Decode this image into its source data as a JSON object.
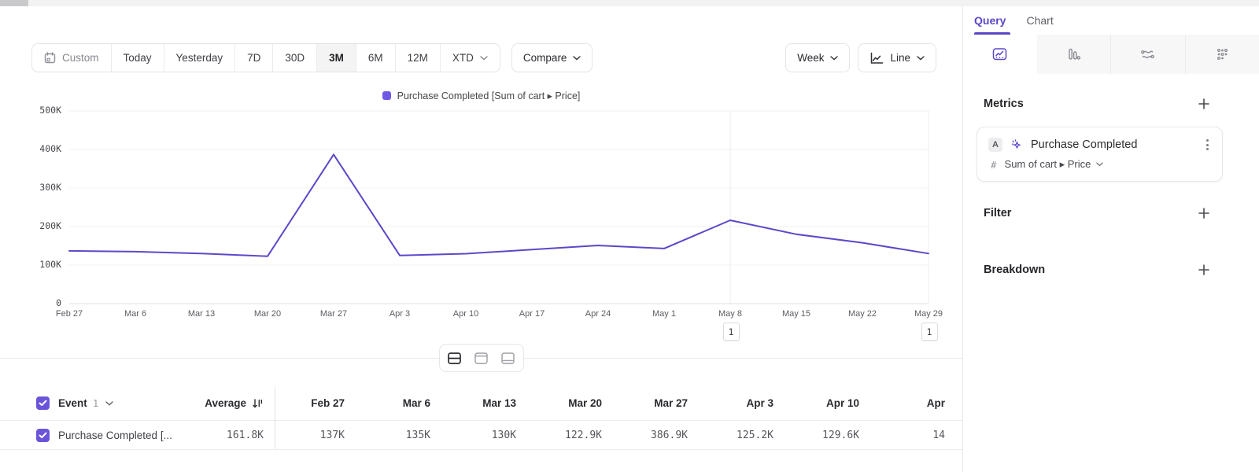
{
  "colors": {
    "accent": "#5a48c8",
    "line": "#5a49c8",
    "swatch": "#6f58e3",
    "checkbox": "#6b54d9",
    "annotation_line": "#ececef",
    "grid": "#f1f1f3",
    "axis": "#e2e2e5"
  },
  "toolbar": {
    "date_ranges": [
      "Custom",
      "Today",
      "Yesterday",
      "7D",
      "30D",
      "3M",
      "6M",
      "12M",
      "XTD"
    ],
    "active_range": "3M",
    "compare_label": "Compare",
    "granularity_label": "Week",
    "chart_type_label": "Line"
  },
  "legend": {
    "label": "Purchase Completed [Sum of cart ▸ Price]"
  },
  "chart_data": {
    "type": "line",
    "title": "",
    "xlabel": "",
    "ylabel": "",
    "x": [
      "Feb 27",
      "Mar 6",
      "Mar 13",
      "Mar 20",
      "Mar 27",
      "Apr 3",
      "Apr 10",
      "Apr 17",
      "Apr 24",
      "May 1",
      "May 8",
      "May 15",
      "May 22",
      "May 29"
    ],
    "series": [
      {
        "name": "Purchase Completed [Sum of cart ▸ Price]",
        "values": [
          137000,
          135000,
          130000,
          122900,
          386900,
          125200,
          129600,
          140300,
          151000,
          143000,
          216400,
          180000,
          158000,
          129900
        ]
      }
    ],
    "ylim": [
      0,
      500000
    ],
    "yticks": [
      "500K",
      "400K",
      "300K",
      "200K",
      "100K",
      "0"
    ],
    "grid": true,
    "legend_position": "top",
    "annotations": [
      {
        "x": "May 8",
        "label": "1"
      },
      {
        "x": "May 29",
        "label": "1"
      }
    ]
  },
  "layout_toggle": {
    "icons": [
      "split-view",
      "chart-focus",
      "table-focus"
    ],
    "active": "split-view"
  },
  "table": {
    "event_label": "Event",
    "event_count": "1",
    "average_label": "Average",
    "columns": [
      "Feb 27",
      "Mar 6",
      "Mar 13",
      "Mar 20",
      "Mar 27",
      "Apr 3",
      "Apr 10",
      "Apr"
    ],
    "rows": [
      {
        "name": "Purchase Completed [...",
        "average": "161.8K",
        "values": [
          "137K",
          "135K",
          "130K",
          "122.9K",
          "386.9K",
          "125.2K",
          "129.6K",
          "14"
        ]
      }
    ]
  },
  "side_panel": {
    "tabs": [
      {
        "label": "Query",
        "active": true
      },
      {
        "label": "Chart",
        "active": false
      }
    ],
    "chart_type_tabs": [
      "insights-line",
      "bar-chart",
      "flow",
      "grid-dots"
    ],
    "metrics": {
      "title": "Metrics",
      "items": [
        {
          "letter": "A",
          "name": "Purchase Completed",
          "aggregation": "Sum of cart ▸ Price"
        }
      ]
    },
    "sections": [
      {
        "title": "Filter"
      },
      {
        "title": "Breakdown"
      }
    ]
  }
}
